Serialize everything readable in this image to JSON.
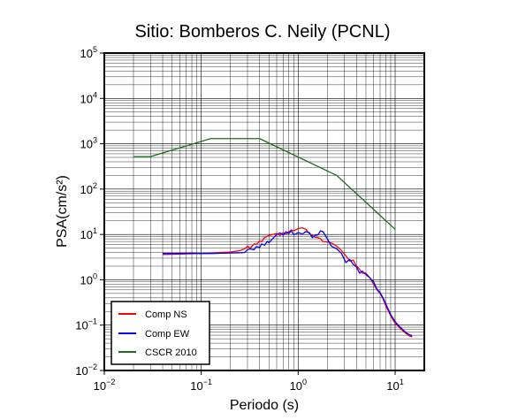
{
  "chart_data": {
    "type": "line",
    "title": "Sitio: Bomberos C. Neily (PCNL)",
    "xlabel": "Periodo (s)",
    "ylabel": "PSA(cm/s²)",
    "x_scale": "log",
    "y_scale": "log",
    "xlim": [
      0.01,
      20
    ],
    "ylim": [
      0.01,
      100000
    ],
    "x_ticks": [
      {
        "value": 0.01,
        "base": "10",
        "exp": "−2"
      },
      {
        "value": 0.1,
        "base": "10",
        "exp": "−1"
      },
      {
        "value": 1,
        "base": "10",
        "exp": "0"
      },
      {
        "value": 10,
        "base": "10",
        "exp": "1"
      }
    ],
    "y_ticks": [
      {
        "value": 0.01,
        "base": "10",
        "exp": "−2"
      },
      {
        "value": 0.1,
        "base": "10",
        "exp": "−1"
      },
      {
        "value": 1,
        "base": "10",
        "exp": "0"
      },
      {
        "value": 10,
        "base": "10",
        "exp": "1"
      },
      {
        "value": 100,
        "base": "10",
        "exp": "2"
      },
      {
        "value": 1000,
        "base": "10",
        "exp": "3"
      },
      {
        "value": 10000,
        "base": "10",
        "exp": "4"
      },
      {
        "value": 100000,
        "base": "10",
        "exp": "5"
      }
    ],
    "grid": true,
    "legend_position": "bottom-left",
    "series": [
      {
        "name": "Comp NS",
        "color": "#ff0000",
        "points": [
          [
            0.04,
            3.6
          ],
          [
            0.06,
            3.7
          ],
          [
            0.08,
            3.75
          ],
          [
            0.1,
            3.8
          ],
          [
            0.13,
            3.9
          ],
          [
            0.16,
            4.0
          ],
          [
            0.2,
            4.1
          ],
          [
            0.25,
            4.4
          ],
          [
            0.28,
            4.8
          ],
          [
            0.3,
            5.5
          ],
          [
            0.32,
            5.0
          ],
          [
            0.35,
            6.2
          ],
          [
            0.37,
            6.0
          ],
          [
            0.4,
            7.2
          ],
          [
            0.42,
            6.9
          ],
          [
            0.45,
            8.5
          ],
          [
            0.5,
            9.5
          ],
          [
            0.55,
            10.0
          ],
          [
            0.6,
            10.5
          ],
          [
            0.65,
            9.5
          ],
          [
            0.7,
            11.0
          ],
          [
            0.75,
            10.2
          ],
          [
            0.8,
            11.5
          ],
          [
            0.85,
            12.5
          ],
          [
            0.9,
            12.0
          ],
          [
            1.0,
            13.5
          ],
          [
            1.1,
            14.0
          ],
          [
            1.2,
            13.0
          ],
          [
            1.3,
            10.5
          ],
          [
            1.4,
            9.5
          ],
          [
            1.5,
            8.6
          ],
          [
            1.6,
            8.5
          ],
          [
            1.7,
            8.0
          ],
          [
            1.8,
            7.0
          ],
          [
            2.0,
            6.8
          ],
          [
            2.2,
            6.5
          ],
          [
            2.5,
            5.5
          ],
          [
            2.8,
            4.4
          ],
          [
            3.1,
            3.4
          ],
          [
            3.4,
            2.6
          ],
          [
            3.7,
            2.7
          ],
          [
            4.0,
            2.0
          ],
          [
            4.3,
            1.7
          ],
          [
            4.6,
            1.4
          ],
          [
            5.0,
            1.4
          ],
          [
            5.5,
            1.1
          ],
          [
            6.0,
            0.8
          ],
          [
            6.5,
            0.6
          ],
          [
            7.0,
            0.5
          ],
          [
            7.5,
            0.38
          ],
          [
            8.0,
            0.27
          ],
          [
            9.0,
            0.16
          ],
          [
            10.0,
            0.11
          ],
          [
            11.0,
            0.09
          ],
          [
            12.0,
            0.075
          ],
          [
            13.0,
            0.065
          ],
          [
            14.0,
            0.058
          ],
          [
            15.0,
            0.055
          ]
        ]
      },
      {
        "name": "Comp EW",
        "color": "#0000ff",
        "points": [
          [
            0.04,
            3.8
          ],
          [
            0.06,
            3.8
          ],
          [
            0.08,
            3.85
          ],
          [
            0.1,
            3.8
          ],
          [
            0.13,
            3.8
          ],
          [
            0.16,
            3.85
          ],
          [
            0.2,
            3.9
          ],
          [
            0.25,
            3.95
          ],
          [
            0.28,
            4.0
          ],
          [
            0.3,
            4.6
          ],
          [
            0.32,
            4.8
          ],
          [
            0.35,
            4.6
          ],
          [
            0.37,
            5.4
          ],
          [
            0.4,
            5.2
          ],
          [
            0.42,
            6.2
          ],
          [
            0.45,
            5.8
          ],
          [
            0.48,
            7.0
          ],
          [
            0.5,
            6.6
          ],
          [
            0.55,
            8.2
          ],
          [
            0.6,
            10.0
          ],
          [
            0.65,
            10.8
          ],
          [
            0.7,
            9.6
          ],
          [
            0.75,
            11.5
          ],
          [
            0.8,
            10.5
          ],
          [
            0.85,
            12.0
          ],
          [
            0.9,
            9.8
          ],
          [
            1.0,
            11.0
          ],
          [
            1.1,
            10.2
          ],
          [
            1.2,
            11.5
          ],
          [
            1.3,
            11.0
          ],
          [
            1.4,
            8.5
          ],
          [
            1.5,
            9.5
          ],
          [
            1.6,
            9.8
          ],
          [
            1.7,
            12.0
          ],
          [
            1.8,
            11.5
          ],
          [
            2.0,
            8.0
          ],
          [
            2.2,
            5.5
          ],
          [
            2.5,
            4.8
          ],
          [
            2.8,
            3.8
          ],
          [
            3.1,
            2.4
          ],
          [
            3.4,
            2.8
          ],
          [
            3.7,
            2.2
          ],
          [
            4.0,
            1.9
          ],
          [
            4.3,
            1.4
          ],
          [
            4.6,
            1.55
          ],
          [
            5.0,
            1.3
          ],
          [
            5.5,
            1.1
          ],
          [
            6.0,
            0.9
          ],
          [
            6.5,
            0.62
          ],
          [
            7.0,
            0.52
          ],
          [
            7.5,
            0.4
          ],
          [
            8.0,
            0.3
          ],
          [
            9.0,
            0.17
          ],
          [
            10.0,
            0.12
          ],
          [
            11.0,
            0.095
          ],
          [
            12.0,
            0.08
          ],
          [
            13.0,
            0.068
          ],
          [
            14.0,
            0.062
          ],
          [
            15.0,
            0.058
          ]
        ]
      },
      {
        "name": "CSCR 2010",
        "color": "#1a6e1a",
        "points": [
          [
            0.02,
            520
          ],
          [
            0.03,
            520
          ],
          [
            0.125,
            1300
          ],
          [
            0.4,
            1300
          ],
          [
            2.5,
            200
          ],
          [
            10,
            13
          ]
        ]
      }
    ]
  }
}
